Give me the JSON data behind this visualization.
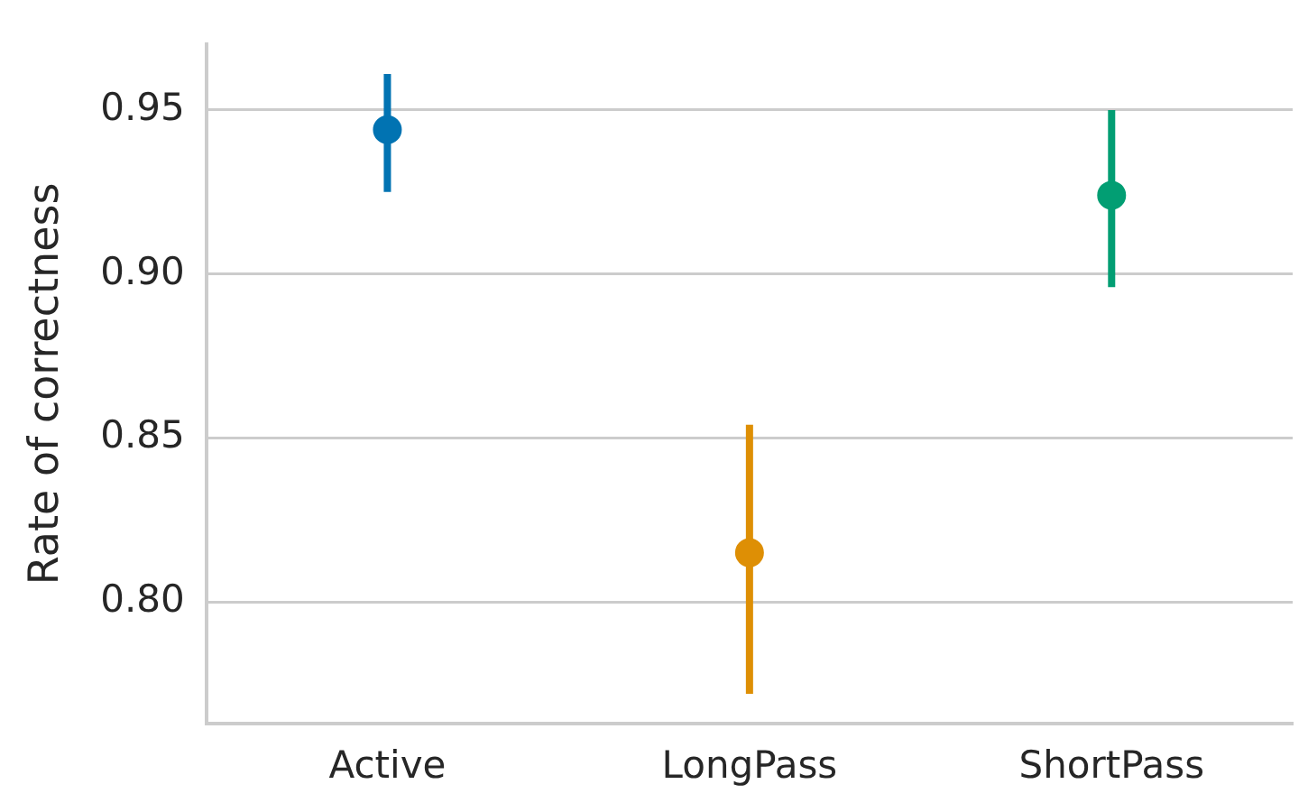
{
  "chart_data": {
    "type": "scatter",
    "ylabel": "Rate of correctness",
    "categories": [
      "Active",
      "LongPass",
      "ShortPass"
    ],
    "values": [
      0.944,
      0.815,
      0.924
    ],
    "errors": [
      [
        0.925,
        0.961
      ],
      [
        0.772,
        0.854
      ],
      [
        0.896,
        0.95
      ]
    ],
    "colors": [
      "#0173b2",
      "#de8f05",
      "#029e73"
    ],
    "ylim": [
      0.763,
      0.97
    ],
    "yticks": [
      {
        "value": 0.8,
        "label": "0.80"
      },
      {
        "value": 0.85,
        "label": "0.85"
      },
      {
        "value": 0.9,
        "label": "0.90"
      },
      {
        "value": 0.95,
        "label": "0.95"
      }
    ],
    "grid": "y",
    "marker": "circle",
    "legend": false
  }
}
